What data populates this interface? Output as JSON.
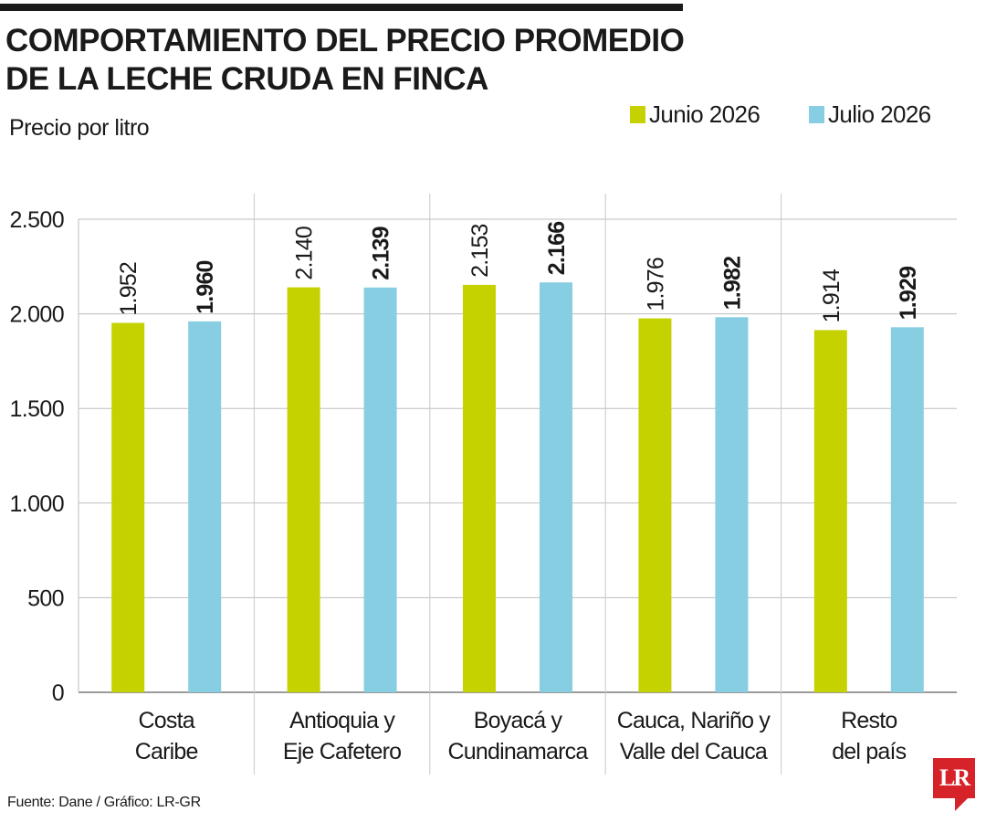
{
  "chart_data": {
    "type": "bar",
    "title_lines": [
      "COMPORTAMIENTO DEL PRECIO PROMEDIO",
      "DE LA LECHE CRUDA EN FINCA"
    ],
    "ylabel": "Precio por litro",
    "categories": [
      [
        "Costa",
        "Caribe"
      ],
      [
        "Antioquia y",
        "Eje Cafetero"
      ],
      [
        "Boyacá y",
        "Cundinamarca"
      ],
      [
        "Cauca, Nariño y",
        "Valle del Cauca"
      ],
      [
        "Resto",
        "del país"
      ]
    ],
    "series": [
      {
        "name": "Junio 2026",
        "color": "#c5d200",
        "values": [
          1952,
          2140,
          2153,
          1976,
          1914
        ],
        "labels": [
          "1.952",
          "2.140",
          "2.153",
          "1.976",
          "1.914"
        ],
        "label_bold": false
      },
      {
        "name": "Julio 2026",
        "color": "#87cee2",
        "values": [
          1960,
          2139,
          2166,
          1982,
          1929
        ],
        "labels": [
          "1.960",
          "2.139",
          "2.166",
          "1.982",
          "1.929"
        ],
        "label_bold": true
      }
    ],
    "ylim": [
      0,
      2500
    ],
    "yticks": [
      0,
      500,
      1000,
      1500,
      2000,
      2500
    ],
    "ytick_labels": [
      "0",
      "500",
      "1.000",
      "1.500",
      "2.000",
      "2.500"
    ],
    "grid": true,
    "legend_position": "top-right",
    "source": "Fuente: Dane / Gráfico: LR-GR"
  },
  "logo_text": "LR"
}
